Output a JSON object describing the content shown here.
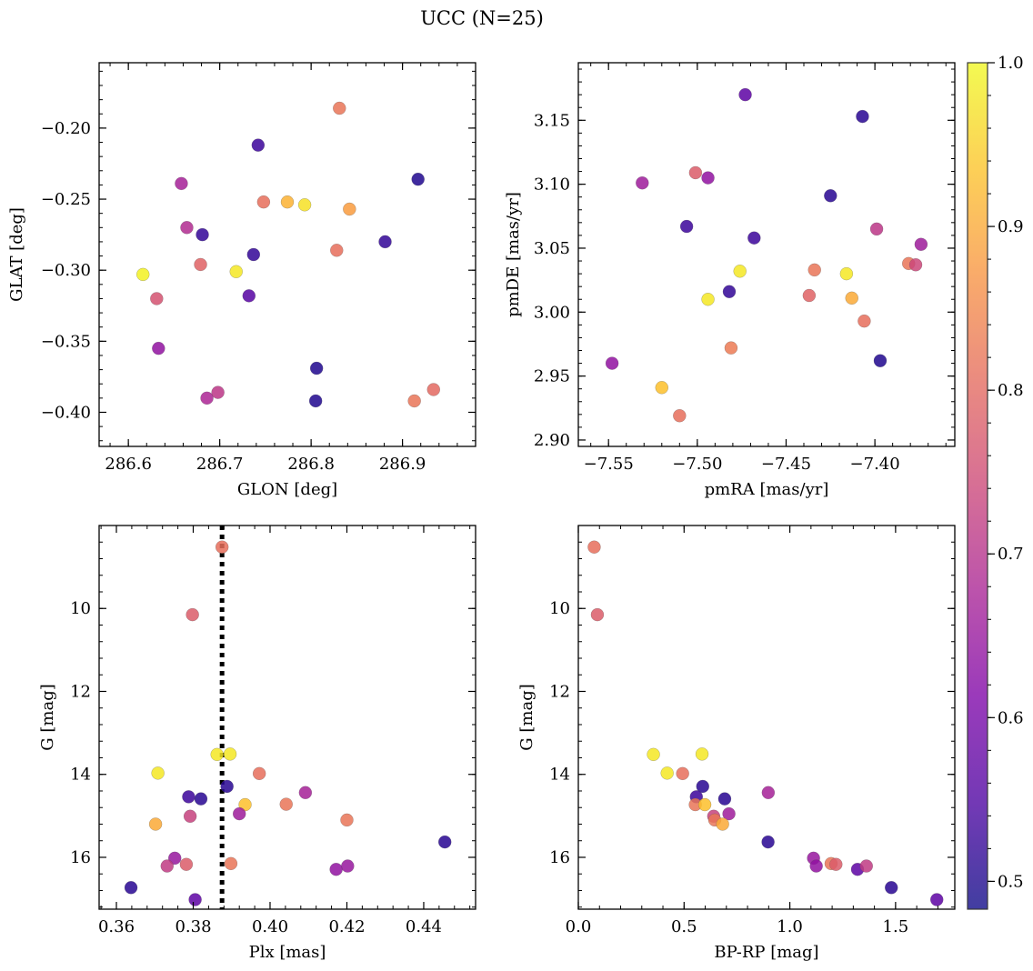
{
  "title": "UCC (N=25)",
  "colorbar": {
    "min": 0.483,
    "max": 1.0,
    "ticks": [
      0.5,
      0.6,
      0.7,
      0.8,
      0.9,
      1.0
    ],
    "tick_labels": [
      "0.5",
      "0.6",
      "0.7",
      "0.8",
      "0.9",
      "1.0"
    ],
    "colormap": "plasma"
  },
  "chart_data": [
    {
      "type": "scatter",
      "id": "glon-glat",
      "xlabel": "GLON [deg]",
      "ylabel": "GLAT [deg]",
      "xlim": [
        286.568,
        286.98
      ],
      "ylim": [
        -0.424,
        -0.154
      ],
      "xticks": [
        286.6,
        286.7,
        286.8,
        286.9
      ],
      "xtick_labels": [
        "286.6",
        "286.7",
        "286.8",
        "286.9"
      ],
      "yticks": [
        -0.2,
        -0.25,
        -0.3,
        -0.35,
        -0.4
      ],
      "ytick_labels": [
        "−0.20",
        "−0.25",
        "−0.30",
        "−0.35",
        "−0.40"
      ],
      "points": [
        {
          "x": 286.616,
          "y": -0.303,
          "c": 0.99
        },
        {
          "x": 286.631,
          "y": -0.32,
          "c": 0.76
        },
        {
          "x": 286.633,
          "y": -0.355,
          "c": 0.64
        },
        {
          "x": 286.658,
          "y": -0.239,
          "c": 0.67
        },
        {
          "x": 286.664,
          "y": -0.27,
          "c": 0.69
        },
        {
          "x": 286.679,
          "y": -0.296,
          "c": 0.79
        },
        {
          "x": 286.681,
          "y": -0.275,
          "c": 0.52
        },
        {
          "x": 286.686,
          "y": -0.39,
          "c": 0.68
        },
        {
          "x": 286.698,
          "y": -0.386,
          "c": 0.71
        },
        {
          "x": 286.718,
          "y": -0.301,
          "c": 0.98
        },
        {
          "x": 286.732,
          "y": -0.318,
          "c": 0.56
        },
        {
          "x": 286.737,
          "y": -0.289,
          "c": 0.52
        },
        {
          "x": 286.742,
          "y": -0.212,
          "c": 0.53
        },
        {
          "x": 286.748,
          "y": -0.252,
          "c": 0.81
        },
        {
          "x": 286.774,
          "y": -0.252,
          "c": 0.91
        },
        {
          "x": 286.793,
          "y": -0.254,
          "c": 0.97
        },
        {
          "x": 286.806,
          "y": -0.369,
          "c": 0.5
        },
        {
          "x": 286.805,
          "y": -0.392,
          "c": 0.5
        },
        {
          "x": 286.828,
          "y": -0.286,
          "c": 0.81
        },
        {
          "x": 286.831,
          "y": -0.186,
          "c": 0.82
        },
        {
          "x": 286.842,
          "y": -0.257,
          "c": 0.88
        },
        {
          "x": 286.881,
          "y": -0.28,
          "c": 0.52
        },
        {
          "x": 286.913,
          "y": -0.392,
          "c": 0.82
        },
        {
          "x": 286.917,
          "y": -0.236,
          "c": 0.5
        },
        {
          "x": 286.934,
          "y": -0.384,
          "c": 0.8
        }
      ]
    },
    {
      "type": "scatter",
      "id": "pm",
      "xlabel": "pmRA [mas/yr]",
      "ylabel": "pmDE [mas/yr]",
      "xlim": [
        -7.567,
        -7.355
      ],
      "ylim": [
        2.895,
        3.195
      ],
      "xticks": [
        -7.55,
        -7.5,
        -7.45,
        -7.4
      ],
      "xtick_labels": [
        "−7.55",
        "−7.50",
        "−7.45",
        "−7.40"
      ],
      "yticks": [
        2.9,
        2.95,
        3.0,
        3.05,
        3.1,
        3.15
      ],
      "ytick_labels": [
        "2.90",
        "2.95",
        "3.00",
        "3.05",
        "3.10",
        "3.15"
      ],
      "points": [
        {
          "x": -7.548,
          "y": 2.96,
          "c": 0.64
        },
        {
          "x": -7.531,
          "y": 3.101,
          "c": 0.66
        },
        {
          "x": -7.52,
          "y": 2.941,
          "c": 0.93
        },
        {
          "x": -7.51,
          "y": 2.919,
          "c": 0.81
        },
        {
          "x": -7.506,
          "y": 3.067,
          "c": 0.53
        },
        {
          "x": -7.501,
          "y": 3.109,
          "c": 0.78
        },
        {
          "x": -7.494,
          "y": 3.105,
          "c": 0.64
        },
        {
          "x": -7.494,
          "y": 3.01,
          "c": 0.98
        },
        {
          "x": -7.482,
          "y": 3.016,
          "c": 0.52
        },
        {
          "x": -7.481,
          "y": 2.972,
          "c": 0.83
        },
        {
          "x": -7.476,
          "y": 3.032,
          "c": 0.98
        },
        {
          "x": -7.473,
          "y": 3.17,
          "c": 0.57
        },
        {
          "x": -7.468,
          "y": 3.058,
          "c": 0.53
        },
        {
          "x": -7.437,
          "y": 3.013,
          "c": 0.79
        },
        {
          "x": -7.434,
          "y": 3.033,
          "c": 0.82
        },
        {
          "x": -7.425,
          "y": 3.091,
          "c": 0.51
        },
        {
          "x": -7.416,
          "y": 3.03,
          "c": 0.98
        },
        {
          "x": -7.413,
          "y": 3.011,
          "c": 0.9
        },
        {
          "x": -7.407,
          "y": 3.153,
          "c": 0.51
        },
        {
          "x": -7.406,
          "y": 2.993,
          "c": 0.81
        },
        {
          "x": -7.399,
          "y": 3.065,
          "c": 0.71
        },
        {
          "x": -7.397,
          "y": 2.962,
          "c": 0.5
        },
        {
          "x": -7.381,
          "y": 3.038,
          "c": 0.82
        },
        {
          "x": -7.377,
          "y": 3.037,
          "c": 0.74
        },
        {
          "x": -7.374,
          "y": 3.053,
          "c": 0.66
        }
      ]
    },
    {
      "type": "scatter",
      "id": "plx-g",
      "xlabel": "Plx [mas]",
      "ylabel": "G [mag]",
      "xlim": [
        0.3555,
        0.4535
      ],
      "ylim": [
        17.25,
        8.0
      ],
      "y_inverted": true,
      "xticks": [
        0.36,
        0.38,
        0.4,
        0.42,
        0.44
      ],
      "xtick_labels": [
        "0.36",
        "0.38",
        "0.40",
        "0.42",
        "0.44"
      ],
      "yticks": [
        10,
        12,
        14,
        16
      ],
      "ytick_labels": [
        "10",
        "12",
        "14",
        "16"
      ],
      "vline": {
        "x": 0.3875,
        "style": "dotted"
      },
      "points": [
        {
          "x": 0.3875,
          "y": 8.52,
          "c": 0.81
        },
        {
          "x": 0.3798,
          "y": 10.15,
          "c": 0.78
        },
        {
          "x": 0.3862,
          "y": 13.52,
          "c": 0.98
        },
        {
          "x": 0.3896,
          "y": 13.51,
          "c": 0.98
        },
        {
          "x": 0.3708,
          "y": 13.97,
          "c": 0.98
        },
        {
          "x": 0.3888,
          "y": 14.29,
          "c": 0.51
        },
        {
          "x": 0.3972,
          "y": 13.98,
          "c": 0.81
        },
        {
          "x": 0.3788,
          "y": 14.54,
          "c": 0.53
        },
        {
          "x": 0.382,
          "y": 14.59,
          "c": 0.51
        },
        {
          "x": 0.3935,
          "y": 14.73,
          "c": 0.93
        },
        {
          "x": 0.4042,
          "y": 14.72,
          "c": 0.82
        },
        {
          "x": 0.4092,
          "y": 14.44,
          "c": 0.67
        },
        {
          "x": 0.3792,
          "y": 15.01,
          "c": 0.73
        },
        {
          "x": 0.392,
          "y": 14.95,
          "c": 0.66
        },
        {
          "x": 0.3702,
          "y": 15.2,
          "c": 0.9
        },
        {
          "x": 0.42,
          "y": 15.1,
          "c": 0.82
        },
        {
          "x": 0.4455,
          "y": 15.63,
          "c": 0.51
        },
        {
          "x": 0.3752,
          "y": 16.02,
          "c": 0.65
        },
        {
          "x": 0.3732,
          "y": 16.21,
          "c": 0.72
        },
        {
          "x": 0.3782,
          "y": 16.17,
          "c": 0.78
        },
        {
          "x": 0.3898,
          "y": 16.15,
          "c": 0.82
        },
        {
          "x": 0.4172,
          "y": 16.29,
          "c": 0.64
        },
        {
          "x": 0.4202,
          "y": 16.21,
          "c": 0.65
        },
        {
          "x": 0.3638,
          "y": 16.73,
          "c": 0.51
        },
        {
          "x": 0.3805,
          "y": 17.02,
          "c": 0.57
        }
      ]
    },
    {
      "type": "scatter",
      "id": "cmd",
      "xlabel": "BP-RP [mag]",
      "ylabel": "G [mag]",
      "xlim": [
        0.0,
        1.78
      ],
      "ylim": [
        17.25,
        8.0
      ],
      "y_inverted": true,
      "xticks": [
        0.0,
        0.5,
        1.0,
        1.5
      ],
      "xtick_labels": [
        "0.0",
        "0.5",
        "1.0",
        "1.5"
      ],
      "yticks": [
        10,
        12,
        14,
        16
      ],
      "ytick_labels": [
        "10",
        "12",
        "14",
        "16"
      ],
      "points": [
        {
          "x": 0.075,
          "y": 8.52,
          "c": 0.81
        },
        {
          "x": 0.09,
          "y": 10.15,
          "c": 0.78
        },
        {
          "x": 0.355,
          "y": 13.52,
          "c": 0.98
        },
        {
          "x": 0.585,
          "y": 13.51,
          "c": 0.98
        },
        {
          "x": 0.42,
          "y": 13.97,
          "c": 0.98
        },
        {
          "x": 0.493,
          "y": 13.98,
          "c": 0.81
        },
        {
          "x": 0.588,
          "y": 14.29,
          "c": 0.51
        },
        {
          "x": 0.692,
          "y": 14.59,
          "c": 0.51
        },
        {
          "x": 0.558,
          "y": 14.54,
          "c": 0.53
        },
        {
          "x": 0.553,
          "y": 14.73,
          "c": 0.82
        },
        {
          "x": 0.598,
          "y": 14.73,
          "c": 0.93
        },
        {
          "x": 0.898,
          "y": 14.44,
          "c": 0.67
        },
        {
          "x": 0.64,
          "y": 15.01,
          "c": 0.73
        },
        {
          "x": 0.712,
          "y": 14.95,
          "c": 0.66
        },
        {
          "x": 0.645,
          "y": 15.1,
          "c": 0.82
        },
        {
          "x": 0.682,
          "y": 15.2,
          "c": 0.9
        },
        {
          "x": 0.897,
          "y": 15.63,
          "c": 0.51
        },
        {
          "x": 1.112,
          "y": 16.02,
          "c": 0.65
        },
        {
          "x": 1.125,
          "y": 16.21,
          "c": 0.64
        },
        {
          "x": 1.195,
          "y": 16.15,
          "c": 0.82
        },
        {
          "x": 1.218,
          "y": 16.17,
          "c": 0.78
        },
        {
          "x": 1.32,
          "y": 16.29,
          "c": 0.57
        },
        {
          "x": 1.362,
          "y": 16.21,
          "c": 0.72
        },
        {
          "x": 1.48,
          "y": 16.73,
          "c": 0.51
        },
        {
          "x": 1.695,
          "y": 17.02,
          "c": 0.57
        }
      ]
    }
  ]
}
